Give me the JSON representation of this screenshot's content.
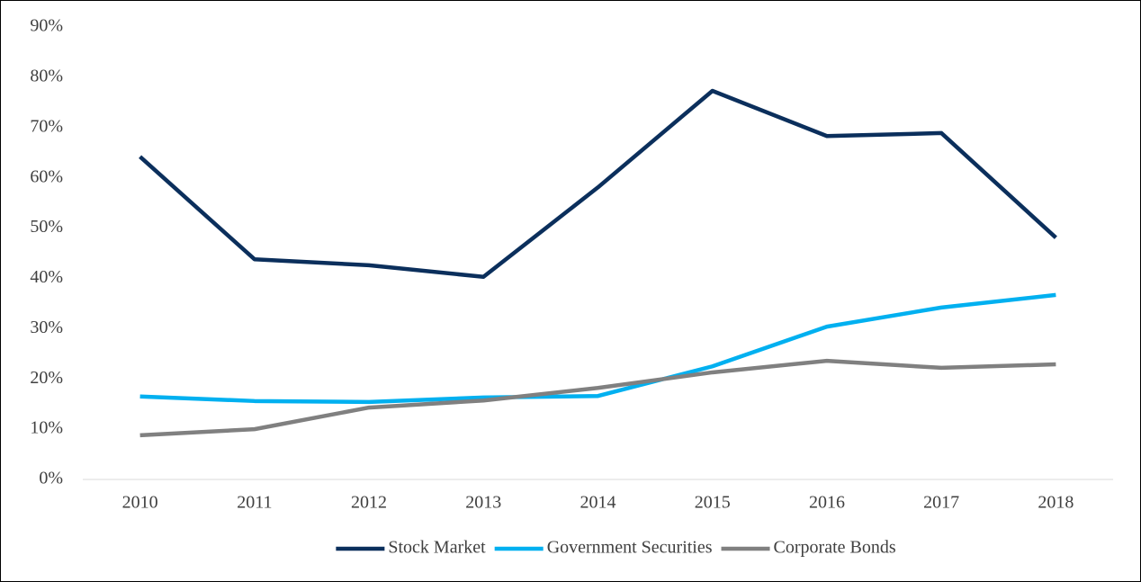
{
  "chart_data": {
    "type": "line",
    "categories": [
      "2010",
      "2011",
      "2012",
      "2013",
      "2014",
      "2015",
      "2016",
      "2017",
      "2018"
    ],
    "series": [
      {
        "name": "Stock Market",
        "color": "#0b2f5c",
        "values": [
          64.2,
          43.8,
          42.6,
          40.3,
          58.1,
          77.3,
          68.3,
          68.9,
          48.1
        ]
      },
      {
        "name": "Government Securities",
        "color": "#00b0f0",
        "values": [
          16.5,
          15.6,
          15.4,
          16.3,
          16.6,
          22.5,
          30.4,
          34.2,
          36.7
        ]
      },
      {
        "name": "Corporate Bonds",
        "color": "#808080",
        "values": [
          8.8,
          10.0,
          14.3,
          15.7,
          18.2,
          21.3,
          23.6,
          22.2,
          22.9
        ]
      }
    ],
    "ylim": [
      0,
      90
    ],
    "yticks": [
      {
        "value": 0,
        "label": "0%"
      },
      {
        "value": 10,
        "label": "10%"
      },
      {
        "value": 20,
        "label": "20%"
      },
      {
        "value": 30,
        "label": "30%"
      },
      {
        "value": 40,
        "label": "40%"
      },
      {
        "value": 50,
        "label": "50%"
      },
      {
        "value": 60,
        "label": "60%"
      },
      {
        "value": 70,
        "label": "70%"
      },
      {
        "value": 80,
        "label": "80%"
      },
      {
        "value": 90,
        "label": "90%"
      }
    ],
    "grid": false,
    "legend": "bottom"
  }
}
